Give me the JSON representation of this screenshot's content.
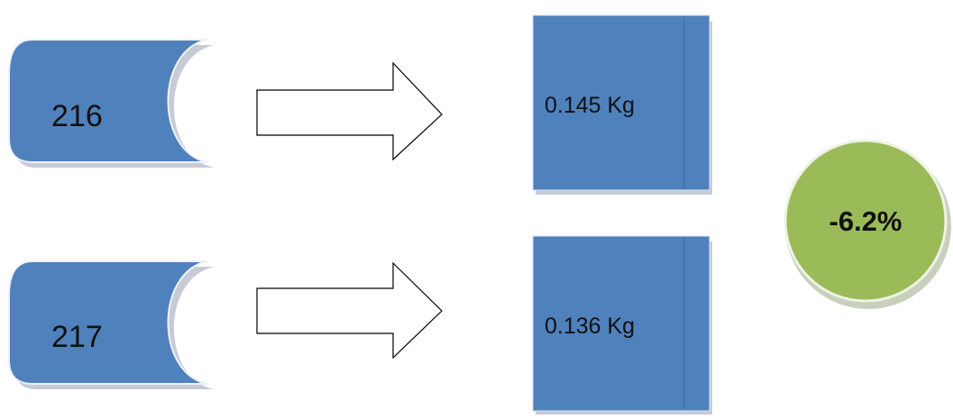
{
  "diagram": {
    "rows": [
      {
        "id": "216",
        "label": "216",
        "value": "0.145 Kg"
      },
      {
        "id": "217",
        "label": "217",
        "value": "0.136 Kg"
      }
    ],
    "result": {
      "label": "-6.2%"
    },
    "colors": {
      "shape_fill": "#4f81bd",
      "shape_shadow": "#c6cbd6",
      "result_fill": "#9bbb59",
      "result_shadow": "#c9cfbd",
      "arrow_stroke": "#000000",
      "text": "#111111"
    }
  }
}
